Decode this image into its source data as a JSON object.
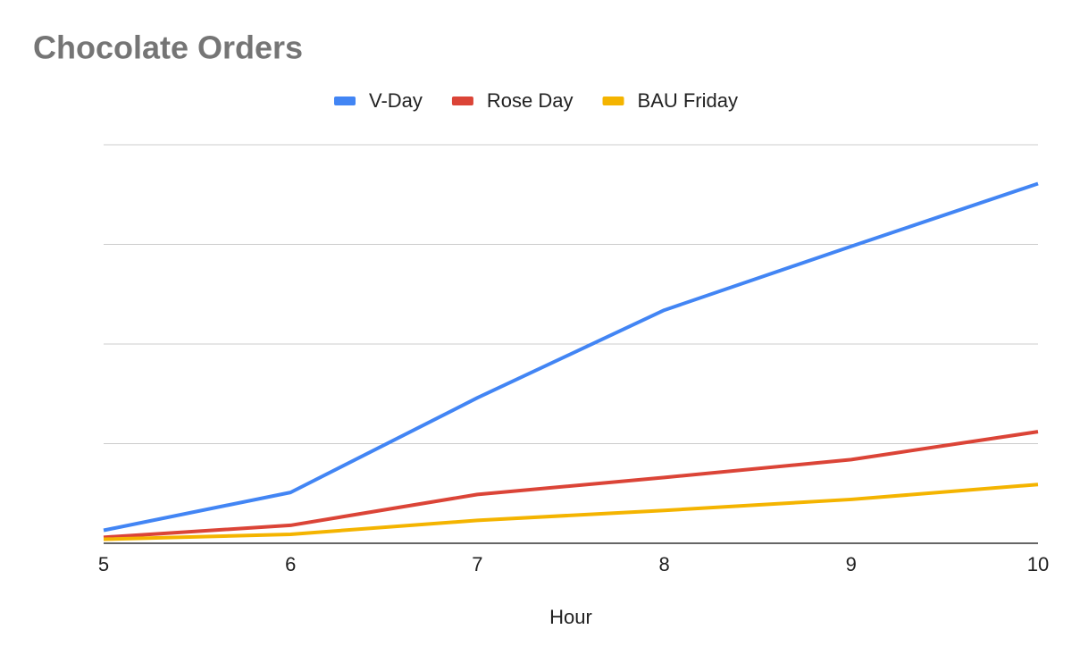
{
  "chart_data": {
    "type": "line",
    "title": "Chocolate Orders",
    "x_label": "Hour",
    "x": [
      5,
      6,
      7,
      8,
      9,
      10
    ],
    "series": [
      {
        "name": "V-Day",
        "color": "#4285f4",
        "values": [
          0.13,
          0.51,
          1.46,
          2.34,
          2.98,
          3.61
        ]
      },
      {
        "name": "Rose Day",
        "color": "#db4437",
        "values": [
          0.06,
          0.18,
          0.49,
          0.66,
          0.84,
          1.12
        ]
      },
      {
        "name": "BAU Friday",
        "color": "#f4b400",
        "values": [
          0.04,
          0.09,
          0.23,
          0.33,
          0.44,
          0.59
        ]
      }
    ],
    "xlim": [
      5,
      10
    ],
    "xticks": [
      5,
      6,
      7,
      8,
      9,
      10
    ],
    "ylim": [
      0,
      4
    ],
    "yticks": [
      0,
      1,
      2,
      3,
      4
    ],
    "ytick_labels": false,
    "grid": true,
    "legend": "top"
  }
}
